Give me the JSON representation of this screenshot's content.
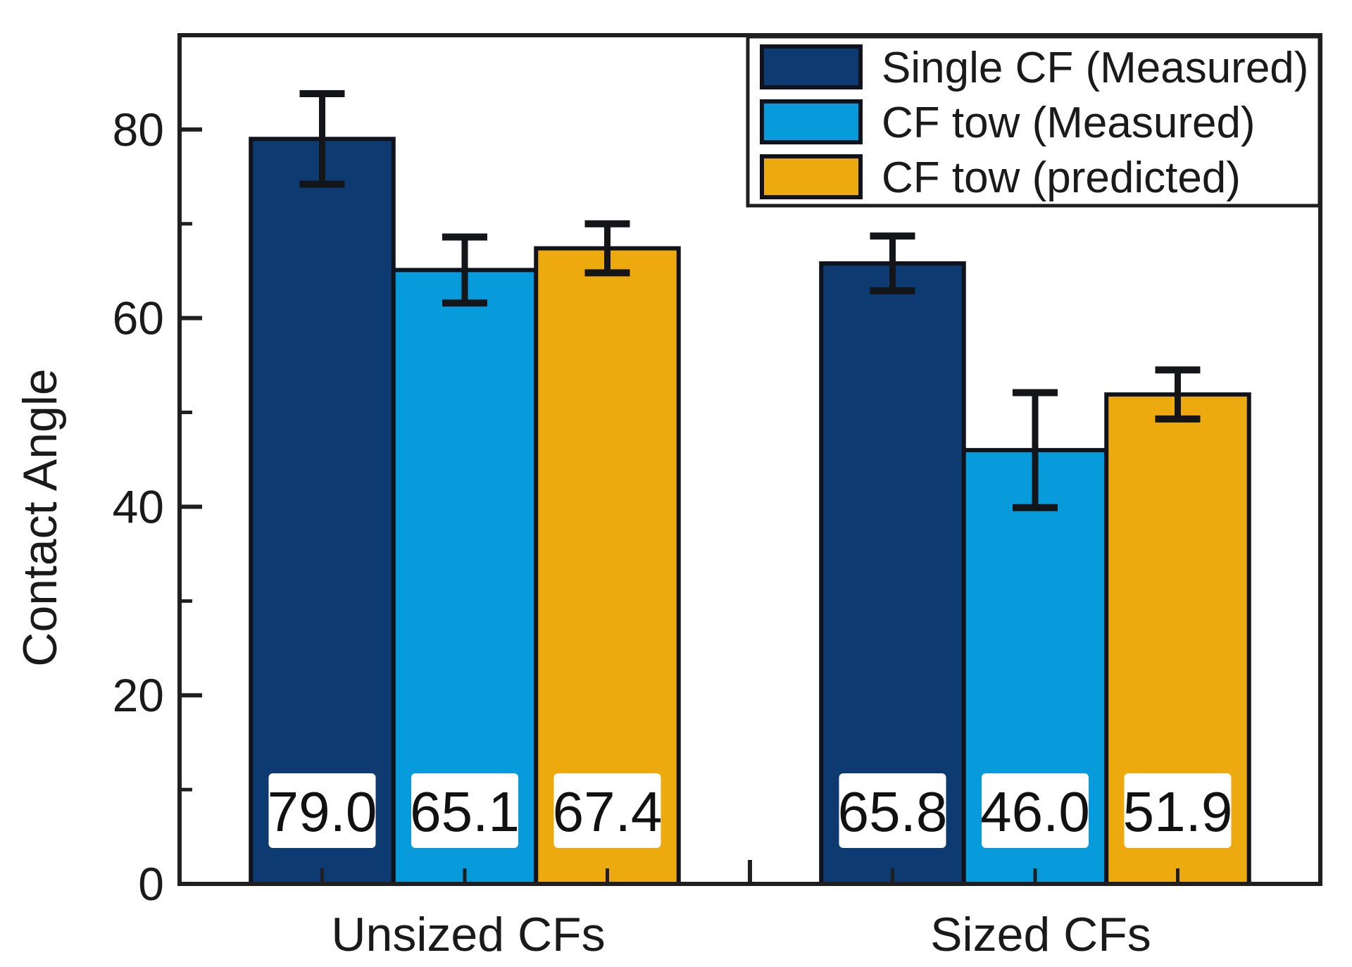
{
  "chart_data": {
    "type": "bar",
    "title": "",
    "xlabel": "",
    "ylabel": "Contact Angle",
    "ylim": [
      0,
      90
    ],
    "yticks_major": [
      0,
      20,
      40,
      60,
      80
    ],
    "yticks_minor": [
      10,
      30,
      50,
      70
    ],
    "grid": false,
    "legend_position": "top-right",
    "categories": [
      "Unsized CFs",
      "Sized CFs"
    ],
    "series": [
      {
        "name": "Single CF (Measured)",
        "color": "#0d3a70",
        "values": [
          79.0,
          65.8
        ],
        "errors": [
          4.8,
          2.9
        ]
      },
      {
        "name": "CF tow (Measured)",
        "color": "#089bdc",
        "values": [
          65.1,
          46.0
        ],
        "errors": [
          3.5,
          6.1
        ]
      },
      {
        "name": "CF tow (predicted)",
        "color": "#edaa0e",
        "values": [
          67.4,
          51.9
        ],
        "errors": [
          2.6,
          2.6
        ]
      }
    ],
    "value_labels": [
      [
        "79.0",
        "65.1",
        "67.4"
      ],
      [
        "65.8",
        "46.0",
        "51.9"
      ]
    ]
  },
  "colors": {
    "frame": "#1f1f1f",
    "error_bar": "#131519",
    "bar_border": "#10131c",
    "value_box_fill": "#ffffff",
    "text": "#1a1a1a",
    "background": "#ffffff"
  }
}
